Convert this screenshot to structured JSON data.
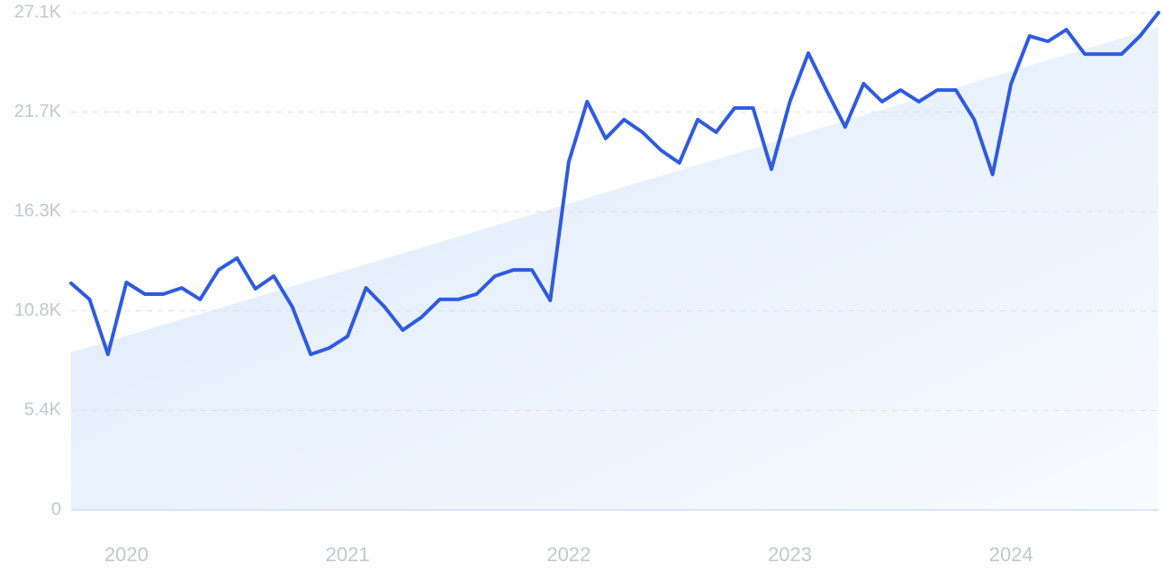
{
  "chart_data": {
    "type": "line",
    "categories": [
      null,
      null,
      null,
      "2020",
      null,
      null,
      null,
      null,
      null,
      null,
      null,
      null,
      null,
      null,
      null,
      "2021",
      null,
      null,
      null,
      null,
      null,
      null,
      null,
      null,
      null,
      null,
      null,
      "2022",
      null,
      null,
      null,
      null,
      null,
      null,
      null,
      null,
      null,
      null,
      null,
      "2023",
      null,
      null,
      null,
      null,
      null,
      null,
      null,
      null,
      null,
      null,
      null,
      "2024",
      null,
      null,
      null,
      null,
      null,
      null,
      null,
      null
    ],
    "series": [
      {
        "color": "#2f5be0",
        "values": [
          12350,
          11470,
          8480,
          12400,
          11760,
          11760,
          12100,
          11470,
          13080,
          13720,
          12050,
          12740,
          11070,
          8480,
          8820,
          9460,
          12100,
          11070,
          9800,
          10490,
          11470,
          11470,
          11760,
          12740,
          13080,
          13080,
          11420,
          18960,
          22250,
          20240,
          21270,
          20580,
          19600,
          18910,
          21270,
          20580,
          21900,
          21900,
          18570,
          22250,
          24890,
          22830,
          20870,
          23230,
          22250,
          22880,
          22250,
          22880,
          22880,
          21270,
          18280,
          23230,
          25820,
          25530,
          26170,
          24840,
          24840,
          24840,
          25820,
          27100
        ]
      }
    ],
    "trend": {
      "start": 8580,
      "end": 26310,
      "color": "#dbe9fb"
    },
    "ylim": [
      0,
      27100
    ],
    "yticks": [
      0,
      {
        "value": 5420,
        "label": "5.4K"
      },
      {
        "value": 10840,
        "label": "10.8K"
      },
      {
        "value": 16260,
        "label": "16.3K"
      },
      {
        "value": 21680,
        "label": "21.7K"
      },
      {
        "value": 27100,
        "label": "27.1K"
      }
    ],
    "grid": true
  }
}
